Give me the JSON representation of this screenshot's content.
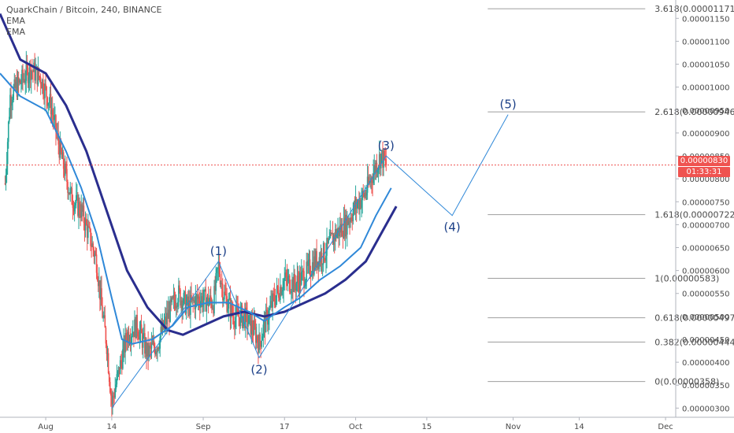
{
  "header": {
    "title": "QuarkChain / Bitcoin, 240, BINANCE",
    "indicators": [
      "EMA",
      "EMA"
    ]
  },
  "colors": {
    "up": "#26a69a",
    "down": "#ef5350",
    "ema_fast": "#2f88d8",
    "ema_slow": "#2a2e8e",
    "wave": "#2f88d8",
    "fib": "#9e9e9e",
    "price_line": "#ef5350",
    "label": "#1b3f87"
  },
  "price_badge": {
    "price": "0.00000830",
    "countdown": "01:33:31"
  },
  "chart_data": {
    "type": "candlestick",
    "title": "QuarkChain / Bitcoin, 240, BINANCE",
    "ylim": [
      2.8e-06,
      1.19e-05
    ],
    "y_ticks": [
      "0.00001150",
      "0.00001100",
      "0.00001050",
      "0.00001000",
      "0.00000950",
      "0.00000900",
      "0.00000850",
      "0.00000800",
      "0.00000750",
      "0.00000700",
      "0.00000650",
      "0.00000600",
      "0.00000550",
      "0.00000500",
      "0.00000450",
      "0.00000400",
      "0.00000350",
      "0.00000300"
    ],
    "x_ticks": [
      {
        "label": "Aug",
        "date": "2018-08-01"
      },
      {
        "label": "14",
        "date": "2018-08-14"
      },
      {
        "label": "Sep",
        "date": "2018-09-01"
      },
      {
        "label": "17",
        "date": "2018-09-17"
      },
      {
        "label": "Oct",
        "date": "2018-10-01"
      },
      {
        "label": "15",
        "date": "2018-10-15"
      },
      {
        "label": "Nov",
        "date": "2018-11-01"
      },
      {
        "label": "14",
        "date": "2018-11-14"
      },
      {
        "label": "Dec",
        "date": "2018-12-01"
      }
    ],
    "current_price": 8.3e-06,
    "price_path": [
      [
        "2018-07-24",
        7.9e-06
      ],
      [
        "2018-07-25",
        9.8e-06
      ],
      [
        "2018-07-27",
        1.01e-05
      ],
      [
        "2018-07-29",
        1.04e-05
      ],
      [
        "2018-07-31",
        1.02e-05
      ],
      [
        "2018-08-02",
        9.6e-06
      ],
      [
        "2018-08-04",
        8.5e-06
      ],
      [
        "2018-08-06",
        7.6e-06
      ],
      [
        "2018-08-08",
        7.3e-06
      ],
      [
        "2018-08-10",
        6.6e-06
      ],
      [
        "2018-08-11",
        6.2e-06
      ],
      [
        "2018-08-12",
        5.2e-06
      ],
      [
        "2018-08-13",
        4.4e-06
      ],
      [
        "2018-08-14",
        3.1e-06
      ],
      [
        "2018-08-15",
        3.6e-06
      ],
      [
        "2018-08-17",
        4.6e-06
      ],
      [
        "2018-08-19",
        4.8e-06
      ],
      [
        "2018-08-21",
        4.2e-06
      ],
      [
        "2018-08-23",
        4.4e-06
      ],
      [
        "2018-08-25",
        5e-06
      ],
      [
        "2018-08-27",
        5.5e-06
      ],
      [
        "2018-08-29",
        5.2e-06
      ],
      [
        "2018-08-31",
        5.4e-06
      ],
      [
        "2018-09-03",
        5.3e-06
      ],
      [
        "2018-09-04",
        6.1e-06
      ],
      [
        "2018-09-05",
        5.5e-06
      ],
      [
        "2018-09-07",
        5e-06
      ],
      [
        "2018-09-09",
        5e-06
      ],
      [
        "2018-09-11",
        4.7e-06
      ],
      [
        "2018-09-12",
        4.4e-06
      ],
      [
        "2018-09-13",
        4.8e-06
      ],
      [
        "2018-09-15",
        5.4e-06
      ],
      [
        "2018-09-17",
        5.8e-06
      ],
      [
        "2018-09-19",
        5.7e-06
      ],
      [
        "2018-09-21",
        5.9e-06
      ],
      [
        "2018-09-23",
        6.2e-06
      ],
      [
        "2018-09-25",
        6.4e-06
      ],
      [
        "2018-09-27",
        6.8e-06
      ],
      [
        "2018-09-29",
        7e-06
      ],
      [
        "2018-10-01",
        7.4e-06
      ],
      [
        "2018-10-03",
        7.7e-06
      ],
      [
        "2018-10-05",
        8.3e-06
      ],
      [
        "2018-10-06",
        8.5e-06
      ],
      [
        "2018-10-07",
        8.3e-06
      ]
    ],
    "ema_fast": [
      [
        "2018-07-23",
        1.03e-05
      ],
      [
        "2018-07-27",
        9.8e-06
      ],
      [
        "2018-08-01",
        9.5e-06
      ],
      [
        "2018-08-05",
        8.6e-06
      ],
      [
        "2018-08-08",
        7.8e-06
      ],
      [
        "2018-08-11",
        6.8e-06
      ],
      [
        "2018-08-14",
        5.4e-06
      ],
      [
        "2018-08-16",
        4.5e-06
      ],
      [
        "2018-08-18",
        4.4e-06
      ],
      [
        "2018-08-22",
        4.5e-06
      ],
      [
        "2018-08-26",
        4.8e-06
      ],
      [
        "2018-08-29",
        5.2e-06
      ],
      [
        "2018-09-02",
        5.3e-06
      ],
      [
        "2018-09-06",
        5.3e-06
      ],
      [
        "2018-09-10",
        5.1e-06
      ],
      [
        "2018-09-13",
        4.9e-06
      ],
      [
        "2018-09-17",
        5.2e-06
      ],
      [
        "2018-09-20",
        5.4e-06
      ],
      [
        "2018-09-24",
        5.8e-06
      ],
      [
        "2018-09-28",
        6.1e-06
      ],
      [
        "2018-10-02",
        6.5e-06
      ],
      [
        "2018-10-05",
        7.2e-06
      ],
      [
        "2018-10-08",
        7.8e-06
      ]
    ],
    "ema_slow": [
      [
        "2018-07-23",
        1.16e-05
      ],
      [
        "2018-07-27",
        1.06e-05
      ],
      [
        "2018-08-01",
        1.03e-05
      ],
      [
        "2018-08-05",
        9.6e-06
      ],
      [
        "2018-08-09",
        8.6e-06
      ],
      [
        "2018-08-13",
        7.3e-06
      ],
      [
        "2018-08-17",
        6e-06
      ],
      [
        "2018-08-21",
        5.2e-06
      ],
      [
        "2018-08-25",
        4.7e-06
      ],
      [
        "2018-08-28",
        4.6e-06
      ],
      [
        "2018-09-01",
        4.8e-06
      ],
      [
        "2018-09-05",
        5e-06
      ],
      [
        "2018-09-09",
        5.1e-06
      ],
      [
        "2018-09-13",
        5e-06
      ],
      [
        "2018-09-17",
        5.1e-06
      ],
      [
        "2018-09-21",
        5.3e-06
      ],
      [
        "2018-09-25",
        5.5e-06
      ],
      [
        "2018-09-29",
        5.8e-06
      ],
      [
        "2018-10-03",
        6.2e-06
      ],
      [
        "2018-10-06",
        6.8e-06
      ],
      [
        "2018-10-09",
        7.4e-06
      ]
    ],
    "fib_levels": [
      {
        "label": "3.618(0.00001171)",
        "value": 1.171e-05
      },
      {
        "label": "2.618(0.00000946)",
        "value": 9.46e-06
      },
      {
        "label": "1.618(0.00000722)",
        "value": 7.22e-06
      },
      {
        "label": "1(0.00000583)",
        "value": 5.83e-06
      },
      {
        "label": "0.618(0.00000497)",
        "value": 4.97e-06
      },
      {
        "label": "0.382(0.00000444)",
        "value": 4.44e-06
      },
      {
        "label": "0(0.00000358)",
        "value": 3.58e-06
      }
    ],
    "wave_points": [
      {
        "label": "",
        "date": "2018-08-14",
        "value": 3e-06
      },
      {
        "label": "(1)",
        "date": "2018-09-04",
        "value": 6.2e-06
      },
      {
        "label": "(2)",
        "date": "2018-09-12",
        "value": 4.1e-06
      },
      {
        "label": "(3)",
        "date": "2018-10-07",
        "value": 8.5e-06
      },
      {
        "label": "(4)",
        "date": "2018-10-20",
        "value": 7.2e-06
      },
      {
        "label": "(5)",
        "date": "2018-10-31",
        "value": 9.4e-06
      }
    ]
  }
}
